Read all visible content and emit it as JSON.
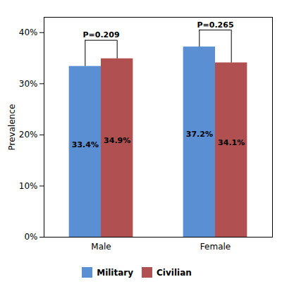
{
  "chart_data": {
    "type": "bar",
    "categories": [
      "Male",
      "Female"
    ],
    "series": [
      {
        "name": "Military",
        "color": "#5B8FD4",
        "values": [
          0.334,
          0.372
        ],
        "value_labels": [
          "33.4%",
          "37.2%"
        ]
      },
      {
        "name": "Civilian",
        "color": "#B05050",
        "values": [
          0.349,
          0.341
        ],
        "value_labels": [
          "34.9%",
          "34.1%"
        ]
      }
    ],
    "ylabel": "Prevalence",
    "ylim": [
      0,
      0.43
    ],
    "yticks": [
      {
        "value": 0,
        "label": "0%"
      },
      {
        "value": 0.1,
        "label": "10%"
      },
      {
        "value": 0.2,
        "label": "20%"
      },
      {
        "value": 0.3,
        "label": "30%"
      },
      {
        "value": 0.4,
        "label": "40%"
      }
    ],
    "data_labels": true,
    "legend": "bottom",
    "grid": false,
    "annotations": [
      {
        "text": "P=0.209",
        "category": "Male",
        "y": 0.385
      },
      {
        "text": "P=0.265",
        "category": "Female",
        "y": 0.405
      }
    ]
  }
}
